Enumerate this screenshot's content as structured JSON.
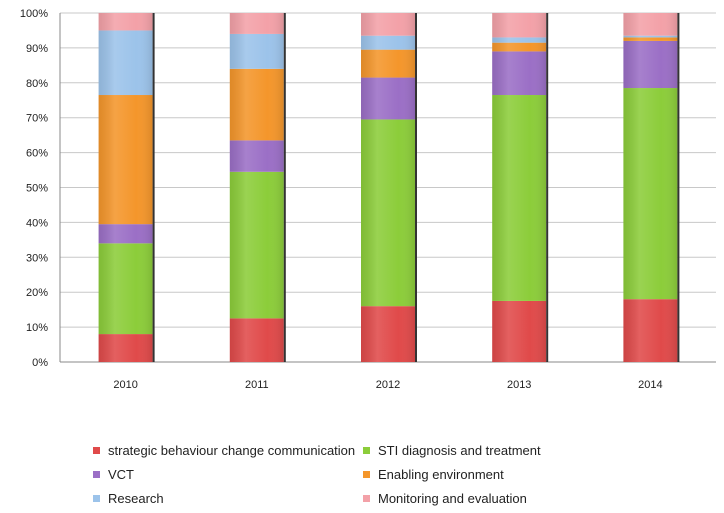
{
  "chart_data": {
    "type": "bar",
    "stacked": true,
    "percent": true,
    "categories": [
      "2010",
      "2011",
      "2012",
      "2013",
      "2014"
    ],
    "ylim": [
      0,
      100
    ],
    "y_ticks": [
      "0%",
      "10%",
      "20%",
      "30%",
      "40%",
      "50%",
      "60%",
      "70%",
      "80%",
      "90%",
      "100%"
    ],
    "grid": true,
    "legend_position": "bottom",
    "series": [
      {
        "name": "strategic behaviour change communication",
        "color": "#e04a4a",
        "values": [
          8,
          12.5,
          16,
          17.5,
          18
        ]
      },
      {
        "name": "STI diagnosis and treatment",
        "color": "#8ccd3a",
        "values": [
          26,
          42,
          53.5,
          59,
          60.5
        ]
      },
      {
        "name": "VCT",
        "color": "#9b6fc6",
        "values": [
          5.5,
          9,
          12,
          12.5,
          13.5
        ]
      },
      {
        "name": "Enabling environment",
        "color": "#f4962b",
        "values": [
          37,
          20.5,
          8,
          2.5,
          1
        ]
      },
      {
        "name": "Research",
        "color": "#9cc3ea",
        "values": [
          18.5,
          10,
          4,
          1.5,
          0.5
        ]
      },
      {
        "name": "Monitoring and evaluation",
        "color": "#f3a1a8",
        "values": [
          5,
          6,
          6.5,
          7,
          6.5
        ]
      }
    ]
  }
}
